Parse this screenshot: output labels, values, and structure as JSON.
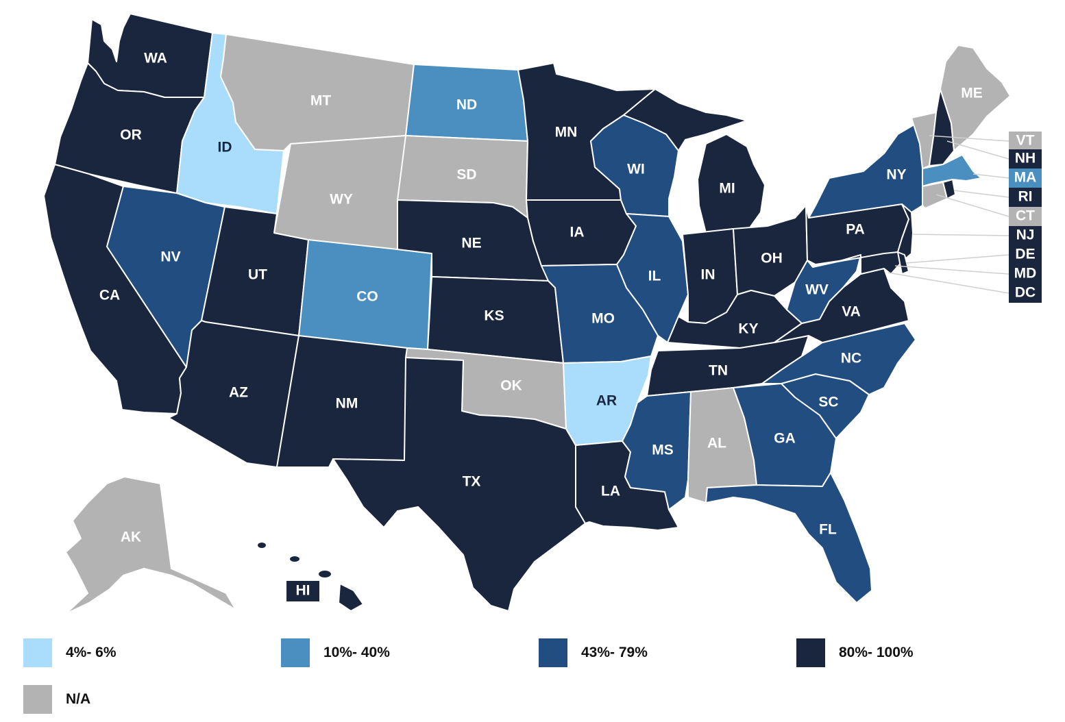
{
  "colors": {
    "c1": "#aadcfb",
    "c2": "#4a8fc0",
    "c3": "#214d80",
    "c4": "#19263d",
    "na": "#b3b3b3"
  },
  "legend": [
    {
      "label": "4%- 6%",
      "color": "#aadcfb"
    },
    {
      "label": "10%- 40%",
      "color": "#4a8fc0"
    },
    {
      "label": "43%- 79%",
      "color": "#214d80"
    },
    {
      "label": "80%- 100%",
      "color": "#19263d"
    },
    {
      "label": "N/A",
      "color": "#b3b3b3"
    }
  ],
  "states": {
    "WA": "80%- 100%",
    "OR": "80%- 100%",
    "CA": "80%- 100%",
    "ID": "4%- 6%",
    "NV": "43%- 79%",
    "UT": "80%- 100%",
    "AZ": "80%- 100%",
    "MT": "N/A",
    "WY": "N/A",
    "CO": "10%- 40%",
    "NM": "80%- 100%",
    "ND": "10%- 40%",
    "SD": "N/A",
    "NE": "80%- 100%",
    "KS": "80%- 100%",
    "OK": "N/A",
    "TX": "80%- 100%",
    "MN": "80%- 100%",
    "IA": "80%- 100%",
    "MO": "43%- 79%",
    "AR": "4%- 6%",
    "LA": "80%- 100%",
    "WI": "43%- 79%",
    "IL": "43%- 79%",
    "MI": "80%- 100%",
    "IN": "80%- 100%",
    "OH": "80%- 100%",
    "KY": "80%- 100%",
    "TN": "80%- 100%",
    "MS": "43%- 79%",
    "AL": "N/A",
    "GA": "43%- 79%",
    "FL": "43%- 79%",
    "SC": "43%- 79%",
    "NC": "43%- 79%",
    "VA": "80%- 100%",
    "WV": "43%- 79%",
    "PA": "80%- 100%",
    "NY": "43%- 79%",
    "NJ": "80%- 100%",
    "DE": "80%- 100%",
    "MD": "80%- 100%",
    "DC": "80%- 100%",
    "CT": "N/A",
    "RI": "80%- 100%",
    "MA": "10%- 40%",
    "VT": "N/A",
    "NH": "80%- 100%",
    "ME": "N/A",
    "AK": "N/A",
    "HI": "80%- 100%"
  }
}
